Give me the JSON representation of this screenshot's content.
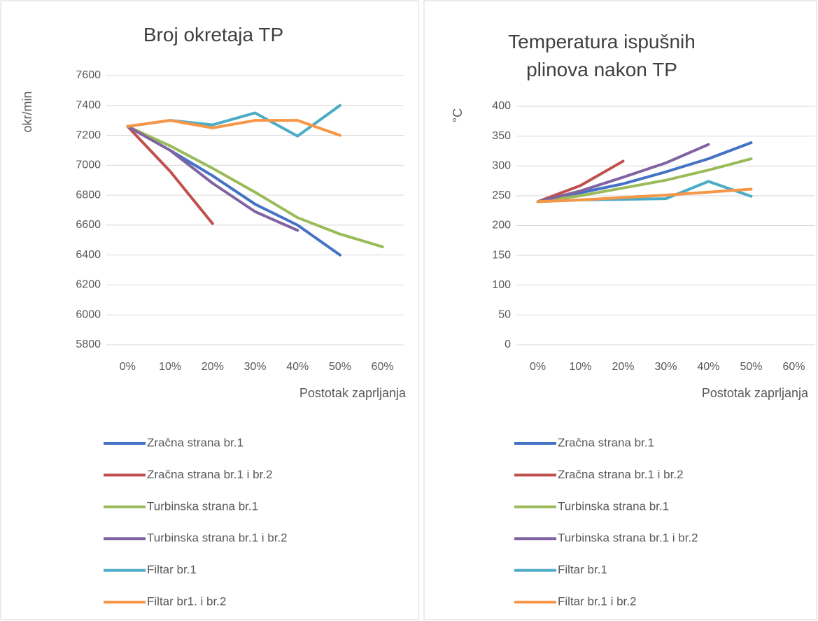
{
  "chart_data": [
    {
      "type": "line",
      "title": "Broj okretaja TP",
      "y_label": "okr/min",
      "x_label": "Postotak zaprljanja",
      "categories": [
        "0%",
        "10%",
        "20%",
        "30%",
        "40%",
        "50%",
        "60%"
      ],
      "ylim": [
        5800,
        7600
      ],
      "yticks": [
        5800,
        6000,
        6200,
        6400,
        6600,
        6800,
        7000,
        7200,
        7400,
        7600
      ],
      "grid": true,
      "legend": "bottom",
      "series": [
        {
          "name": "Zračna strana br.1",
          "color": "#4472c4",
          "values": [
            7260,
            7100,
            6930,
            6740,
            6600,
            6400,
            null
          ]
        },
        {
          "name": "Zračna strana br.1 i br.2",
          "color": "#c0504d",
          "values": [
            7260,
            6960,
            6610,
            null,
            null,
            null,
            null
          ]
        },
        {
          "name": "Turbinska strana br.1",
          "color": "#9bbb59",
          "values": [
            7260,
            7130,
            6980,
            6820,
            6650,
            6540,
            6455
          ]
        },
        {
          "name": "Turbinska strana br.1 i br.2",
          "color": "#8064a2",
          "values": [
            7260,
            7100,
            6880,
            6690,
            6565,
            null,
            null
          ]
        },
        {
          "name": "Filtar br.1",
          "color": "#4bacc6",
          "values": [
            7260,
            7300,
            7270,
            7350,
            7195,
            7400,
            null
          ]
        },
        {
          "name": "Filtar br1. i br.2",
          "color": "#f79646",
          "values": [
            7260,
            7300,
            7250,
            7300,
            7300,
            7200,
            null
          ]
        }
      ]
    },
    {
      "type": "line",
      "title": "Temperatura ispušnih plinova nakon TP",
      "y_label": "°C",
      "x_label": "Postotak zaprljanja",
      "categories": [
        "0%",
        "10%",
        "20%",
        "30%",
        "40%",
        "50%",
        "60%"
      ],
      "ylim": [
        0,
        400
      ],
      "yticks": [
        0,
        50,
        100,
        150,
        200,
        250,
        300,
        350,
        400
      ],
      "grid": true,
      "legend": "bottom",
      "series": [
        {
          "name": "Zračna strana br.1",
          "color": "#4472c4",
          "values": [
            240,
            255,
            270,
            290,
            312,
            339,
            null
          ]
        },
        {
          "name": "Zračna strana br.1 i br.2",
          "color": "#c0504d",
          "values": [
            240,
            267,
            308,
            null,
            null,
            null,
            null
          ]
        },
        {
          "name": "Turbinska strana br.1",
          "color": "#9bbb59",
          "values": [
            240,
            250,
            263,
            276,
            293,
            312,
            null
          ]
        },
        {
          "name": "Turbinska strana br.1 i br.2",
          "color": "#8064a2",
          "values": [
            240,
            258,
            281,
            305,
            336,
            null,
            null
          ]
        },
        {
          "name": "Filtar br.1",
          "color": "#4bacc6",
          "values": [
            240,
            243,
            244,
            245,
            274,
            249,
            null
          ]
        },
        {
          "name": "Filtar br.1 i br.2",
          "color": "#f79646",
          "values": [
            240,
            243,
            247,
            251,
            256,
            261,
            null
          ]
        }
      ]
    }
  ]
}
